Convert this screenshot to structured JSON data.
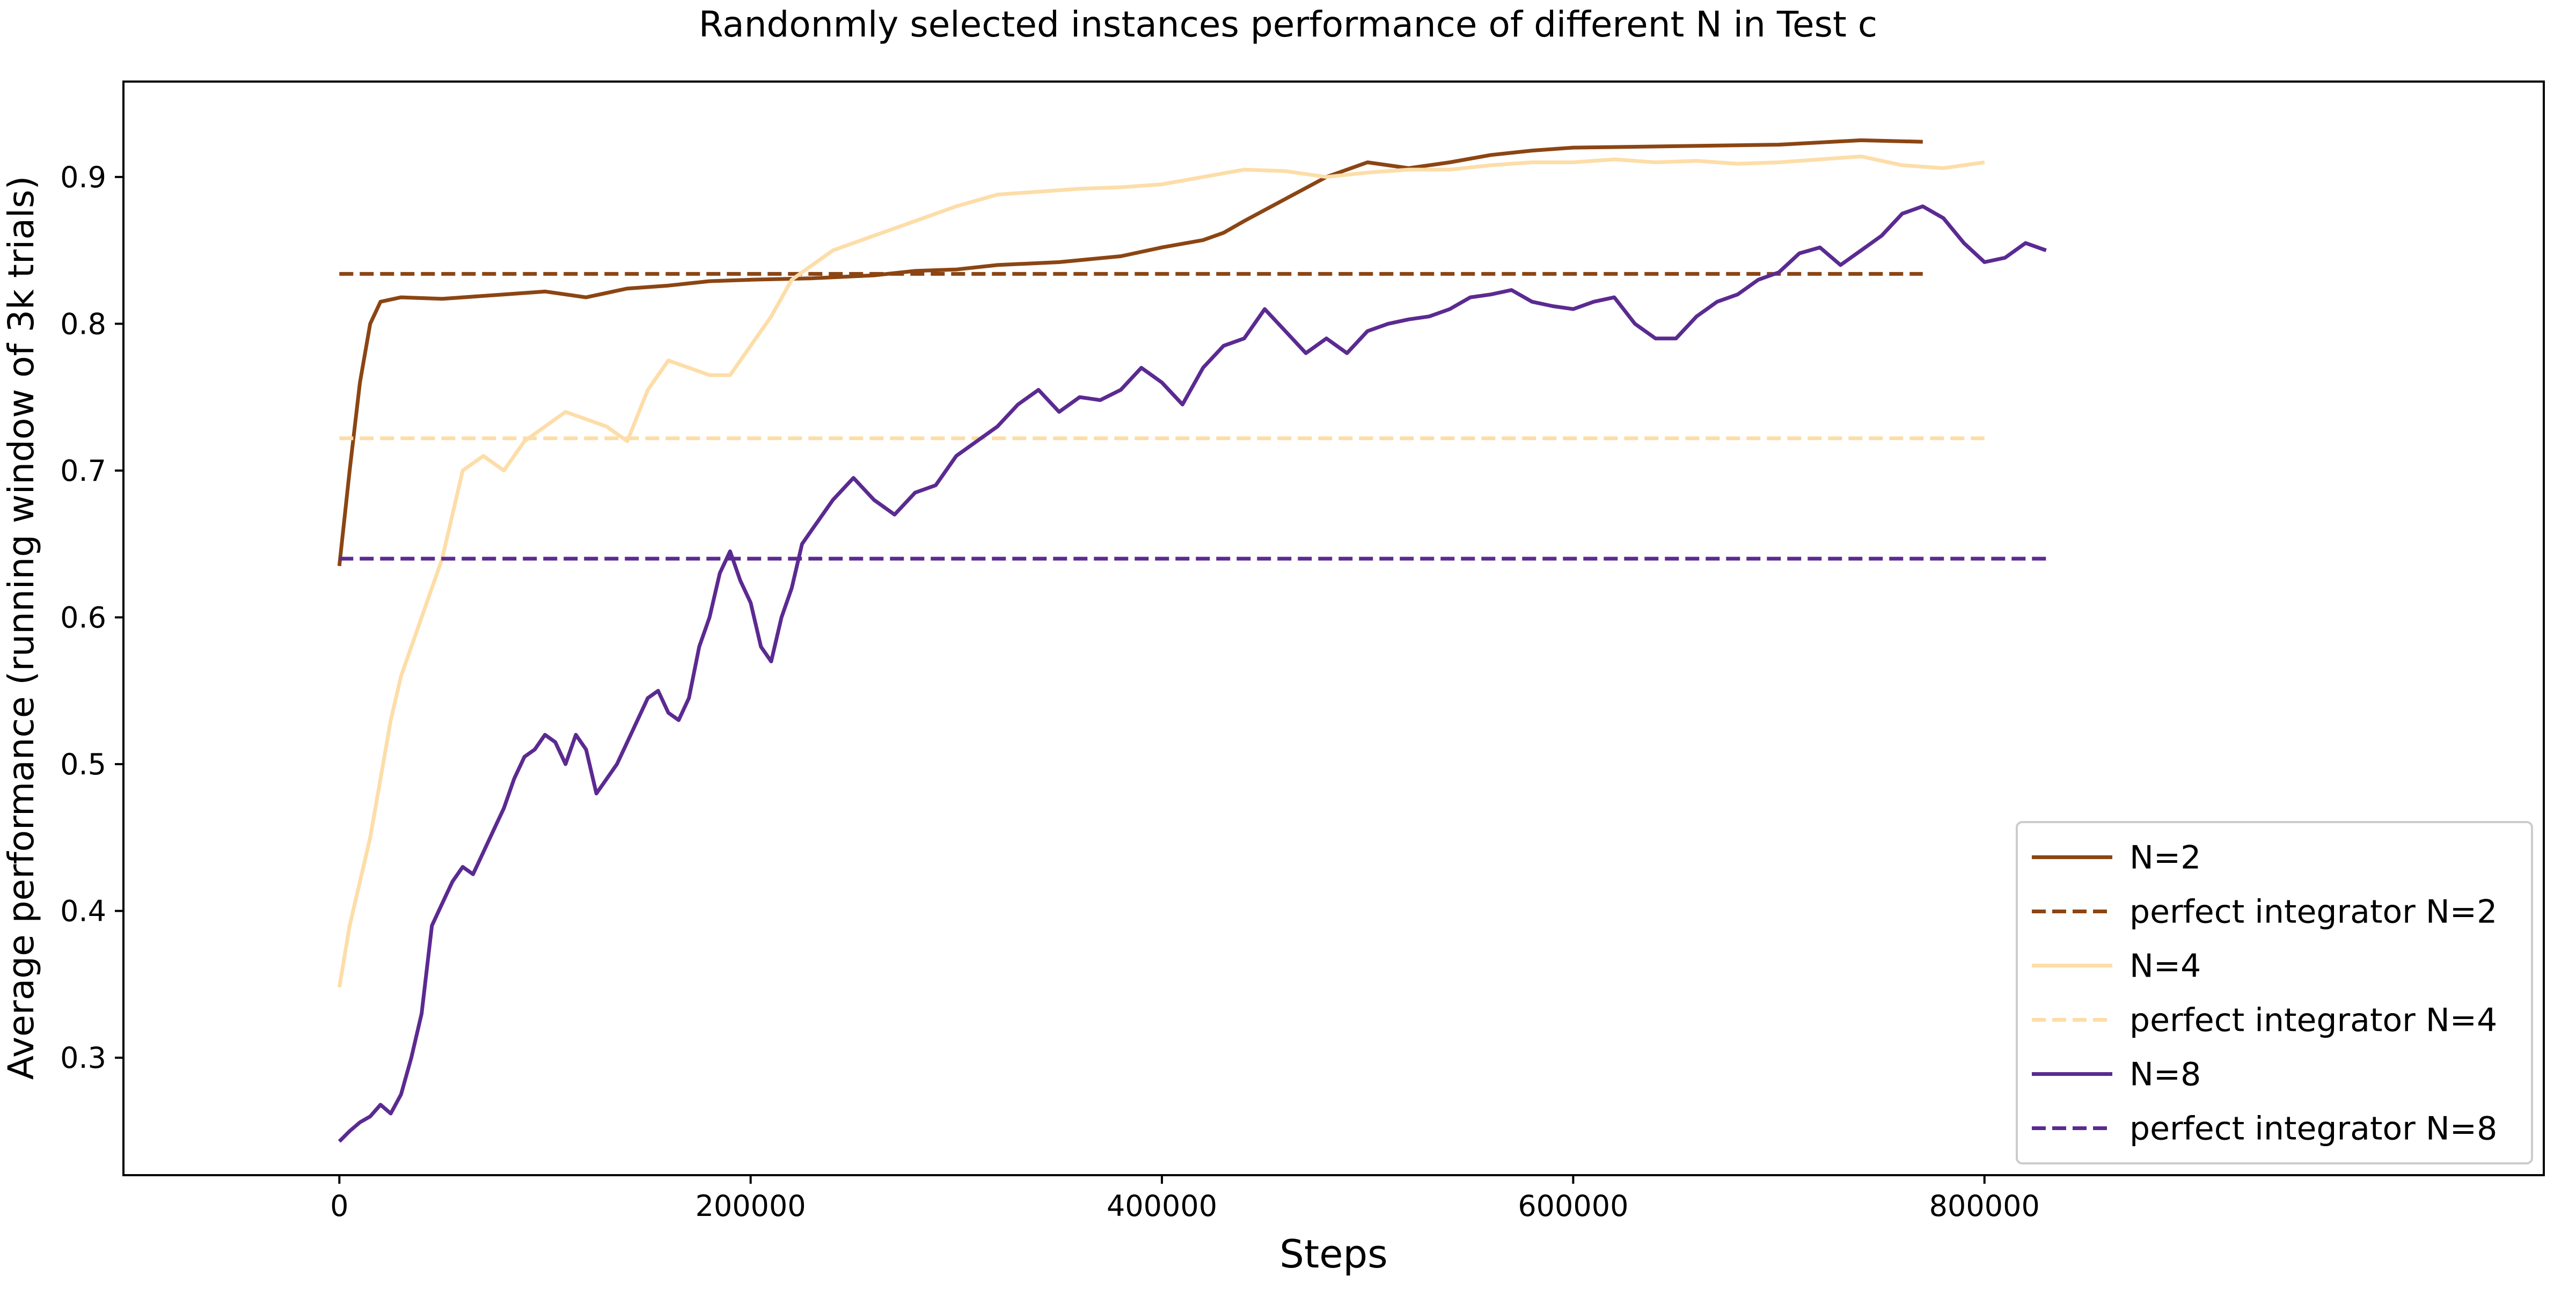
{
  "chart_data": {
    "type": "line",
    "title": "Randonmly selected instances performance of different N in Test c",
    "xlabel": "Steps",
    "ylabel": "Average performance (running window of 3k trials)",
    "xlim": [
      -105000,
      1072000
    ],
    "ylim": [
      0.22,
      0.965
    ],
    "x_ticks": [
      0,
      200000,
      400000,
      600000,
      800000
    ],
    "x_tick_labels": [
      "0",
      "200000",
      "400000",
      "600000",
      "800000"
    ],
    "y_ticks": [
      0.3,
      0.4,
      0.5,
      0.6,
      0.7,
      0.8,
      0.9
    ],
    "y_tick_labels": [
      "0.3",
      "0.4",
      "0.5",
      "0.6",
      "0.7",
      "0.8",
      "0.9"
    ],
    "grid": false,
    "legend_position": "lower-right",
    "series": [
      {
        "name": "N=2",
        "style": "solid",
        "color": "#8B4513",
        "x": [
          0,
          5000,
          10000,
          15000,
          20000,
          30000,
          50000,
          80000,
          100000,
          120000,
          140000,
          160000,
          180000,
          200000,
          230000,
          260000,
          280000,
          300000,
          320000,
          350000,
          380000,
          400000,
          420000,
          430000,
          440000,
          460000,
          480000,
          500000,
          520000,
          540000,
          560000,
          580000,
          600000,
          650000,
          700000,
          740000,
          770000
        ],
        "y": [
          0.635,
          0.7,
          0.76,
          0.8,
          0.815,
          0.818,
          0.817,
          0.82,
          0.822,
          0.818,
          0.824,
          0.826,
          0.829,
          0.83,
          0.831,
          0.833,
          0.836,
          0.837,
          0.84,
          0.842,
          0.846,
          0.852,
          0.857,
          0.862,
          0.87,
          0.885,
          0.9,
          0.91,
          0.906,
          0.91,
          0.915,
          0.918,
          0.92,
          0.921,
          0.922,
          0.925,
          0.924
        ]
      },
      {
        "name": "perfect integrator N=2",
        "style": "dashed",
        "color": "#8B4513",
        "x": [
          0,
          770000
        ],
        "y": [
          0.834,
          0.834
        ]
      },
      {
        "name": "N=4",
        "style": "solid",
        "color": "#FDDDA8",
        "x": [
          0,
          5000,
          10000,
          15000,
          20000,
          25000,
          30000,
          40000,
          50000,
          60000,
          70000,
          80000,
          90000,
          100000,
          110000,
          120000,
          130000,
          140000,
          150000,
          160000,
          170000,
          180000,
          190000,
          200000,
          210000,
          220000,
          240000,
          260000,
          280000,
          300000,
          320000,
          340000,
          360000,
          380000,
          400000,
          420000,
          440000,
          460000,
          480000,
          500000,
          520000,
          540000,
          560000,
          580000,
          600000,
          620000,
          640000,
          660000,
          680000,
          700000,
          720000,
          740000,
          760000,
          780000,
          800000
        ],
        "y": [
          0.348,
          0.39,
          0.42,
          0.45,
          0.49,
          0.53,
          0.56,
          0.6,
          0.64,
          0.7,
          0.71,
          0.7,
          0.72,
          0.73,
          0.74,
          0.735,
          0.73,
          0.72,
          0.755,
          0.775,
          0.77,
          0.765,
          0.765,
          0.785,
          0.805,
          0.83,
          0.85,
          0.86,
          0.87,
          0.88,
          0.888,
          0.89,
          0.892,
          0.893,
          0.895,
          0.9,
          0.905,
          0.904,
          0.9,
          0.903,
          0.905,
          0.905,
          0.908,
          0.91,
          0.91,
          0.912,
          0.91,
          0.911,
          0.909,
          0.91,
          0.912,
          0.914,
          0.908,
          0.906,
          0.91
        ]
      },
      {
        "name": "perfect integrator N=4",
        "style": "dashed",
        "color": "#FDDDA8",
        "x": [
          0,
          800000
        ],
        "y": [
          0.722,
          0.722
        ]
      },
      {
        "name": "N=8",
        "style": "solid",
        "color": "#5B2A91",
        "x": [
          0,
          5000,
          10000,
          15000,
          20000,
          25000,
          30000,
          35000,
          40000,
          45000,
          50000,
          55000,
          60000,
          65000,
          70000,
          75000,
          80000,
          85000,
          90000,
          95000,
          100000,
          105000,
          110000,
          115000,
          120000,
          125000,
          130000,
          135000,
          140000,
          145000,
          150000,
          155000,
          160000,
          165000,
          170000,
          175000,
          180000,
          185000,
          190000,
          195000,
          200000,
          205000,
          210000,
          215000,
          220000,
          225000,
          230000,
          240000,
          250000,
          260000,
          270000,
          280000,
          290000,
          300000,
          310000,
          320000,
          330000,
          340000,
          350000,
          360000,
          370000,
          380000,
          390000,
          400000,
          410000,
          420000,
          430000,
          440000,
          450000,
          460000,
          470000,
          480000,
          490000,
          500000,
          510000,
          520000,
          530000,
          540000,
          550000,
          560000,
          570000,
          580000,
          590000,
          600000,
          610000,
          620000,
          630000,
          640000,
          650000,
          660000,
          670000,
          680000,
          690000,
          700000,
          710000,
          720000,
          730000,
          740000,
          750000,
          760000,
          770000,
          780000,
          790000,
          800000,
          810000,
          820000,
          830000
        ],
        "y": [
          0.243,
          0.25,
          0.256,
          0.26,
          0.268,
          0.262,
          0.275,
          0.3,
          0.33,
          0.39,
          0.405,
          0.42,
          0.43,
          0.425,
          0.44,
          0.455,
          0.47,
          0.49,
          0.505,
          0.51,
          0.52,
          0.515,
          0.5,
          0.52,
          0.51,
          0.48,
          0.49,
          0.5,
          0.515,
          0.53,
          0.545,
          0.55,
          0.535,
          0.53,
          0.545,
          0.58,
          0.6,
          0.63,
          0.645,
          0.625,
          0.61,
          0.58,
          0.57,
          0.6,
          0.62,
          0.65,
          0.66,
          0.68,
          0.695,
          0.68,
          0.67,
          0.685,
          0.69,
          0.71,
          0.72,
          0.73,
          0.745,
          0.755,
          0.74,
          0.75,
          0.748,
          0.755,
          0.77,
          0.76,
          0.745,
          0.77,
          0.785,
          0.79,
          0.81,
          0.795,
          0.78,
          0.79,
          0.78,
          0.795,
          0.8,
          0.803,
          0.805,
          0.81,
          0.818,
          0.82,
          0.823,
          0.815,
          0.812,
          0.81,
          0.815,
          0.818,
          0.8,
          0.79,
          0.79,
          0.805,
          0.815,
          0.82,
          0.83,
          0.835,
          0.848,
          0.852,
          0.84,
          0.85,
          0.86,
          0.875,
          0.88,
          0.872,
          0.855,
          0.842,
          0.845,
          0.855,
          0.85
        ]
      },
      {
        "name": "perfect integrator N=8",
        "style": "dashed",
        "color": "#5B2A91",
        "x": [
          0,
          830000
        ],
        "y": [
          0.64,
          0.64
        ]
      }
    ]
  }
}
